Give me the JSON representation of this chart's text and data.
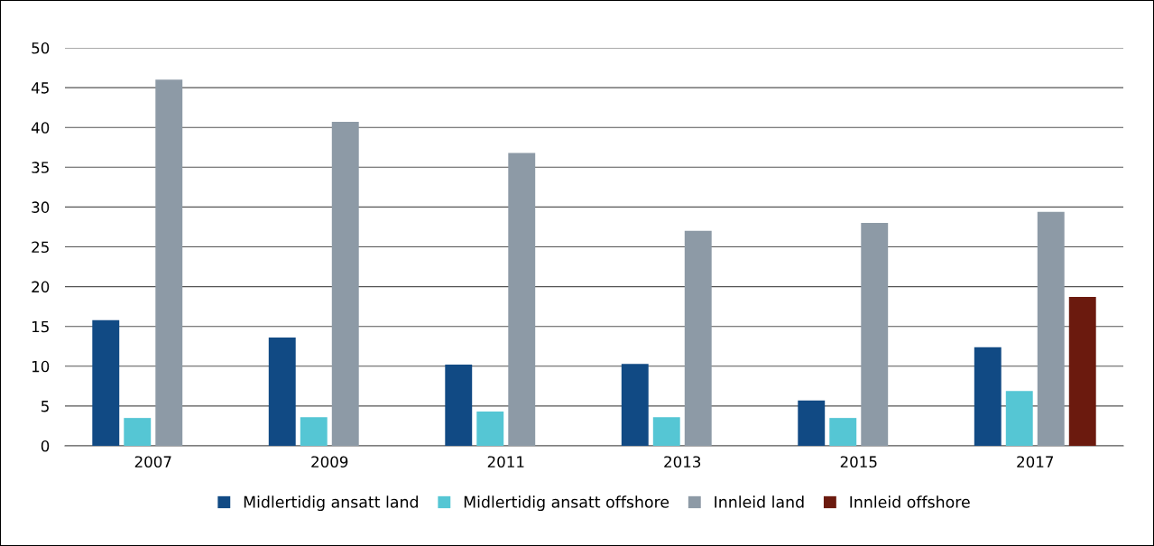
{
  "chart_data": {
    "type": "bar",
    "categories": [
      "2007",
      "2009",
      "2011",
      "2013",
      "2015",
      "2017"
    ],
    "series": [
      {
        "name": "Midlertidig ansatt land",
        "color": "#114a84",
        "values": [
          15.8,
          13.6,
          10.2,
          10.3,
          5.7,
          12.4
        ]
      },
      {
        "name": "Midlertidig ansatt offshore",
        "color": "#55c6d4",
        "values": [
          3.5,
          3.6,
          4.3,
          3.6,
          3.5,
          6.9
        ]
      },
      {
        "name": "Innleid land",
        "color": "#8d9aa6",
        "values": [
          46.0,
          40.7,
          36.8,
          27.0,
          28.0,
          29.4
        ]
      },
      {
        "name": "Innleid offshore",
        "color": "#6b1a0e",
        "values": [
          null,
          null,
          null,
          null,
          null,
          18.7
        ]
      }
    ],
    "ylim": [
      0,
      50
    ],
    "yticks": [
      0,
      5,
      10,
      15,
      20,
      25,
      30,
      35,
      40,
      45,
      50
    ],
    "grid": "y",
    "legend": "bottom"
  }
}
